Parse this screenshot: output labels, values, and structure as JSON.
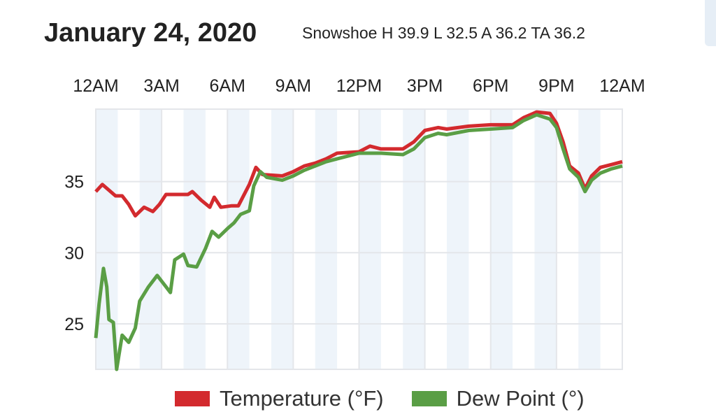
{
  "header": {
    "title": "January 24, 2020",
    "subtitle": "Snowshoe H 39.9 L 32.5 A 36.2 TA 36.2"
  },
  "chart_data": {
    "type": "line",
    "title": "January 24, 2020",
    "subtitle": "Snowshoe H 39.9 L 32.5 A 36.2 TA 36.2",
    "xlabel": "",
    "ylabel": "",
    "x_ticks": [
      "12AM",
      "3AM",
      "6AM",
      "9AM",
      "12PM",
      "3PM",
      "6PM",
      "9PM",
      "12AM"
    ],
    "x_tick_hours": [
      0,
      3,
      6,
      9,
      12,
      15,
      18,
      21,
      24
    ],
    "xlim": [
      0,
      24
    ],
    "y_ticks": [
      25,
      30,
      35
    ],
    "ylim": [
      21.8,
      40.1
    ],
    "grid": true,
    "legend_position": "bottom",
    "series": [
      {
        "name": "Temperature (°F)",
        "color": "#d32a2e",
        "points": [
          [
            0,
            34.3
          ],
          [
            0.3,
            34.8
          ],
          [
            0.6,
            34.4
          ],
          [
            0.9,
            34.0
          ],
          [
            1.2,
            34.0
          ],
          [
            1.5,
            33.4
          ],
          [
            1.8,
            32.6
          ],
          [
            2.2,
            33.2
          ],
          [
            2.6,
            32.9
          ],
          [
            2.9,
            33.4
          ],
          [
            3.2,
            34.1
          ],
          [
            4.2,
            34.1
          ],
          [
            4.4,
            34.3
          ],
          [
            4.8,
            33.7
          ],
          [
            5.2,
            33.2
          ],
          [
            5.4,
            33.9
          ],
          [
            5.7,
            33.2
          ],
          [
            6.2,
            33.3
          ],
          [
            6.5,
            33.3
          ],
          [
            7.0,
            34.8
          ],
          [
            7.3,
            36.0
          ],
          [
            7.6,
            35.5
          ],
          [
            8.5,
            35.4
          ],
          [
            9.0,
            35.7
          ],
          [
            9.5,
            36.1
          ],
          [
            10,
            36.3
          ],
          [
            10.5,
            36.6
          ],
          [
            11,
            37.0
          ],
          [
            12,
            37.1
          ],
          [
            12.5,
            37.5
          ],
          [
            13,
            37.3
          ],
          [
            14,
            37.3
          ],
          [
            14.5,
            37.8
          ],
          [
            15,
            38.6
          ],
          [
            15.6,
            38.8
          ],
          [
            16,
            38.7
          ],
          [
            17,
            38.9
          ],
          [
            18,
            39.0
          ],
          [
            19,
            39.0
          ],
          [
            19.5,
            39.5
          ],
          [
            20.1,
            39.9
          ],
          [
            20.7,
            39.8
          ],
          [
            21,
            39.1
          ],
          [
            21.3,
            37.8
          ],
          [
            21.6,
            36.1
          ],
          [
            22,
            35.6
          ],
          [
            22.3,
            34.5
          ],
          [
            22.6,
            35.4
          ],
          [
            23,
            36.0
          ],
          [
            23.5,
            36.2
          ],
          [
            24,
            36.4
          ]
        ]
      },
      {
        "name": "Dew Point (°)",
        "color": "#5a9e45",
        "points": [
          [
            0,
            24.0
          ],
          [
            0.15,
            26.4
          ],
          [
            0.35,
            28.9
          ],
          [
            0.5,
            27.6
          ],
          [
            0.6,
            25.3
          ],
          [
            0.8,
            25.1
          ],
          [
            0.95,
            21.8
          ],
          [
            1.2,
            24.2
          ],
          [
            1.5,
            23.7
          ],
          [
            1.8,
            24.7
          ],
          [
            2.0,
            26.6
          ],
          [
            2.4,
            27.6
          ],
          [
            2.8,
            28.4
          ],
          [
            3.1,
            27.8
          ],
          [
            3.4,
            27.2
          ],
          [
            3.6,
            29.5
          ],
          [
            4.0,
            29.9
          ],
          [
            4.2,
            29.1
          ],
          [
            4.6,
            29.0
          ],
          [
            5.0,
            30.3
          ],
          [
            5.3,
            31.5
          ],
          [
            5.6,
            31.1
          ],
          [
            6.0,
            31.7
          ],
          [
            6.3,
            32.1
          ],
          [
            6.6,
            32.7
          ],
          [
            7.0,
            32.95
          ],
          [
            7.2,
            34.7
          ],
          [
            7.5,
            35.7
          ],
          [
            7.8,
            35.3
          ],
          [
            8.5,
            35.1
          ],
          [
            9,
            35.4
          ],
          [
            9.5,
            35.8
          ],
          [
            10,
            36.1
          ],
          [
            10.5,
            36.4
          ],
          [
            11,
            36.6
          ],
          [
            12,
            37.0
          ],
          [
            13,
            37.0
          ],
          [
            14,
            36.9
          ],
          [
            14.5,
            37.3
          ],
          [
            15,
            38.1
          ],
          [
            15.6,
            38.4
          ],
          [
            16,
            38.3
          ],
          [
            17,
            38.6
          ],
          [
            18,
            38.7
          ],
          [
            19,
            38.8
          ],
          [
            19.5,
            39.3
          ],
          [
            20.1,
            39.7
          ],
          [
            20.7,
            39.4
          ],
          [
            21,
            38.8
          ],
          [
            21.3,
            37.3
          ],
          [
            21.6,
            35.9
          ],
          [
            22,
            35.3
          ],
          [
            22.3,
            34.3
          ],
          [
            22.6,
            35.1
          ],
          [
            23,
            35.6
          ],
          [
            23.5,
            35.9
          ],
          [
            24,
            36.1
          ]
        ]
      }
    ]
  }
}
